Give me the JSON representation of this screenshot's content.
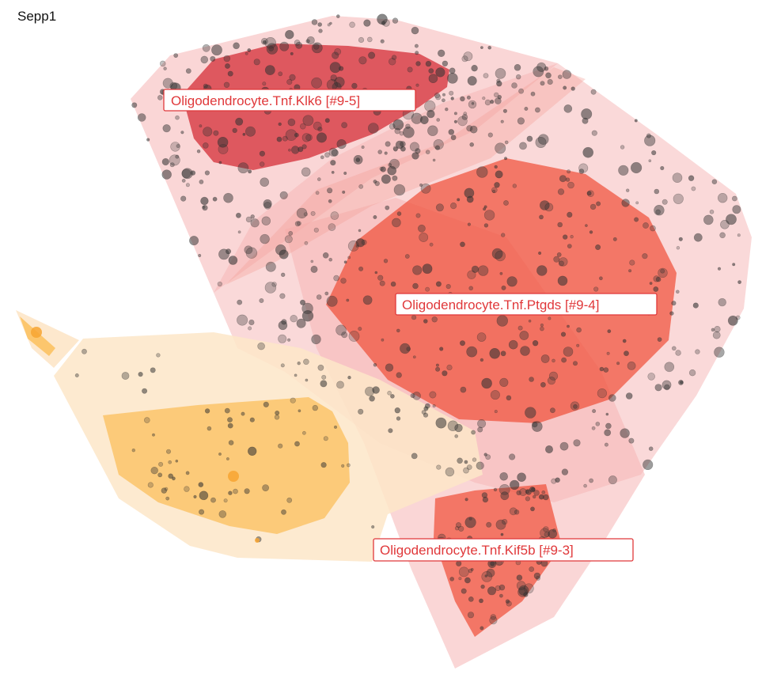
{
  "gene": "Sepp1",
  "colors": {
    "red_dark": "#d6343e",
    "red_orange": "#f0503a",
    "pink_light": "#f6b4b4",
    "peach_light": "#fde6c8",
    "orange": "#fbbf5c",
    "label_text": "#e0383a",
    "point": "#333333"
  },
  "chart_data": {
    "type": "scatter",
    "title": "Sepp1",
    "xlabel": "",
    "ylabel": "",
    "grid": false,
    "legend": "none",
    "clusters": [
      {
        "label": "Oligodendrocyte.Tnf.Klk6 [#9-5]",
        "color": "#d6343e"
      },
      {
        "label": "Oligodendrocyte.Tnf.Ptgds [#9-4]",
        "color": "#f0503a"
      },
      {
        "label": "Oligodendrocyte.Tnf.Kif5b [#9-3]",
        "color": "#f0503a"
      }
    ]
  }
}
